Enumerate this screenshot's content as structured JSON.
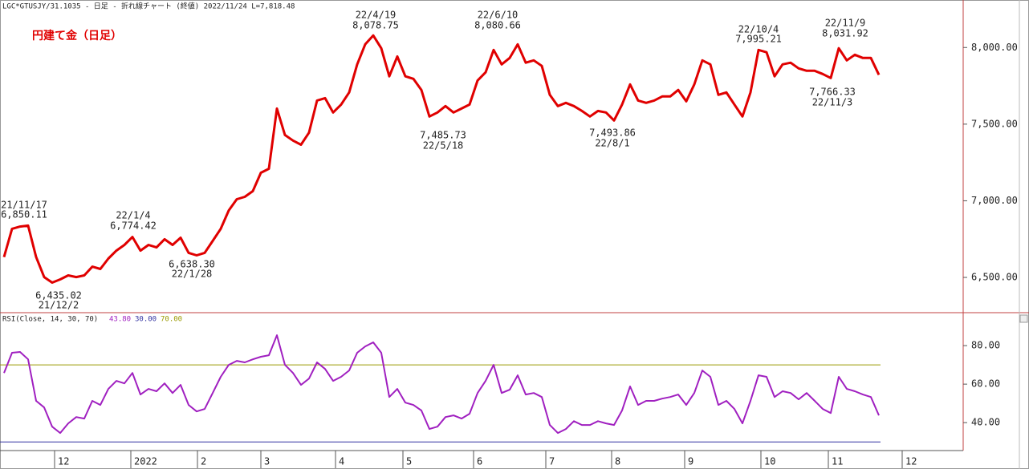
{
  "header": "LGC*GTUSJY/31.1035 - 日足 - 折れ線チャート (終値)  2022/11/24 L=7,818.48",
  "chart_data": [
    {
      "type": "line",
      "title": "円建て金（日足）",
      "xlim": [
        -0.5,
        119.5
      ],
      "ylim": [
        6270,
        8310
      ],
      "yticks": [
        {
          "value": 6500,
          "label": "6,500.00"
        },
        {
          "value": 7000,
          "label": "7,000.00"
        },
        {
          "value": 7500,
          "label": "7,500.00"
        },
        {
          "value": 8000,
          "label": "8,000.00"
        }
      ],
      "series": [
        {
          "color": "#e00000",
          "values": [
            6633,
            6817,
            6832,
            6838,
            6633,
            6502,
            6466,
            6487,
            6513,
            6502,
            6513,
            6570,
            6555,
            6623,
            6675,
            6712,
            6764,
            6675,
            6712,
            6696,
            6749,
            6712,
            6759,
            6660,
            6644,
            6660,
            6738,
            6817,
            6937,
            7010,
            7026,
            7063,
            7183,
            7209,
            7602,
            7429,
            7393,
            7366,
            7445,
            7654,
            7670,
            7576,
            7628,
            7707,
            7890,
            8021,
            8079,
            7995,
            7812,
            7942,
            7812,
            7796,
            7723,
            7550,
            7576,
            7618,
            7576,
            7602,
            7628,
            7785,
            7838,
            7984,
            7890,
            7932,
            8021,
            7901,
            7916,
            7880,
            7691,
            7618,
            7639,
            7618,
            7586,
            7550,
            7586,
            7576,
            7524,
            7628,
            7759,
            7654,
            7639,
            7654,
            7681,
            7681,
            7723,
            7649,
            7759,
            7916,
            7890,
            7691,
            7707,
            7628,
            7550,
            7707,
            7984,
            7969,
            7812,
            7890,
            7901,
            7864,
            7848,
            7848,
            7827,
            7801,
            7995,
            7916,
            7953,
            7932,
            7932,
            7822
          ]
        }
      ],
      "annotations": [
        {
          "date": "21/11/17",
          "value": 6850.11,
          "label": "6,850.11"
        },
        {
          "date": "21/12/2",
          "value": 6435.02,
          "label": "6,435.02"
        },
        {
          "date": "22/1/4",
          "value": 6774.42,
          "label": "6,774.42"
        },
        {
          "date": "22/1/28",
          "value": 6638.3,
          "label": "6,638.30"
        },
        {
          "date": "22/4/19",
          "value": 8078.75,
          "label": "8,078.75"
        },
        {
          "date": "22/5/18",
          "value": 7485.73,
          "label": "7,485.73"
        },
        {
          "date": "22/6/10",
          "value": 8080.66,
          "label": "8,080.66"
        },
        {
          "date": "22/8/1",
          "value": 7493.86,
          "label": "7,493.86"
        },
        {
          "date": "22/10/4",
          "value": 7995.21,
          "label": "7,995.21"
        },
        {
          "date": "22/11/3",
          "value": 7766.33,
          "label": "7,766.33"
        },
        {
          "date": "22/11/9",
          "value": 8031.92,
          "label": "8,031.92"
        }
      ]
    },
    {
      "type": "line",
      "title": "RSI(Close, 14, 30, 70)",
      "last_value": {
        "value": 43.8,
        "label": "43.80",
        "color": "#a020c0"
      },
      "levels": [
        {
          "value": 30,
          "label": "30.00",
          "color": "#3030a0"
        },
        {
          "value": 70,
          "label": "70.00",
          "color": "#9a9a00"
        }
      ],
      "xlim": [
        -0.5,
        119.5
      ],
      "ylim": [
        28,
        96.7
      ],
      "yticks": [
        {
          "value": 40,
          "label": "40.00"
        },
        {
          "value": 60,
          "label": "60.00"
        },
        {
          "value": 80,
          "label": "80.00"
        }
      ],
      "xticks": [
        {
          "value": 6.3,
          "label": "12"
        },
        {
          "value": 15.8,
          "label": "2022"
        },
        {
          "value": 24.1,
          "label": "2"
        },
        {
          "value": 32,
          "label": "3"
        },
        {
          "value": 41.3,
          "label": "4"
        },
        {
          "value": 49.7,
          "label": "5"
        },
        {
          "value": 58.5,
          "label": "6"
        },
        {
          "value": 67.5,
          "label": "7"
        },
        {
          "value": 75.7,
          "label": "8"
        },
        {
          "value": 84.8,
          "label": "9"
        },
        {
          "value": 94.3,
          "label": "10"
        },
        {
          "value": 102.7,
          "label": "11"
        },
        {
          "value": 111.9,
          "label": "12"
        }
      ],
      "series": [
        {
          "color": "#a020c0",
          "values": [
            65.8,
            76.3,
            76.7,
            72.9,
            51.3,
            47.9,
            37.9,
            34.6,
            39.6,
            42.9,
            42.1,
            51.3,
            49.2,
            57.5,
            61.7,
            60.4,
            65.8,
            54.6,
            57.5,
            56.3,
            60.4,
            55.4,
            59.6,
            49.2,
            45.8,
            47.1,
            55.4,
            63.8,
            70.0,
            72.1,
            71.3,
            72.9,
            74.2,
            75.0,
            85.4,
            70.0,
            65.8,
            59.6,
            62.9,
            71.3,
            67.9,
            61.7,
            63.8,
            67.1,
            76.3,
            79.6,
            81.7,
            76.3,
            53.3,
            57.5,
            50.4,
            49.2,
            46.3,
            36.7,
            37.9,
            42.9,
            43.8,
            42.1,
            44.6,
            55.4,
            61.7,
            70.0,
            55.4,
            57.1,
            64.6,
            54.6,
            55.4,
            53.3,
            38.8,
            34.6,
            36.7,
            40.8,
            38.8,
            38.8,
            40.8,
            39.6,
            38.8,
            46.3,
            58.8,
            49.2,
            51.3,
            51.3,
            52.5,
            53.3,
            54.6,
            49.2,
            55.4,
            67.1,
            63.8,
            49.2,
            51.3,
            47.1,
            39.6,
            51.3,
            64.6,
            63.8,
            53.3,
            56.3,
            55.4,
            52.1,
            55.4,
            51.3,
            47.1,
            45.0,
            63.8,
            57.5,
            56.3,
            54.6,
            53.3,
            43.8
          ]
        }
      ]
    }
  ]
}
